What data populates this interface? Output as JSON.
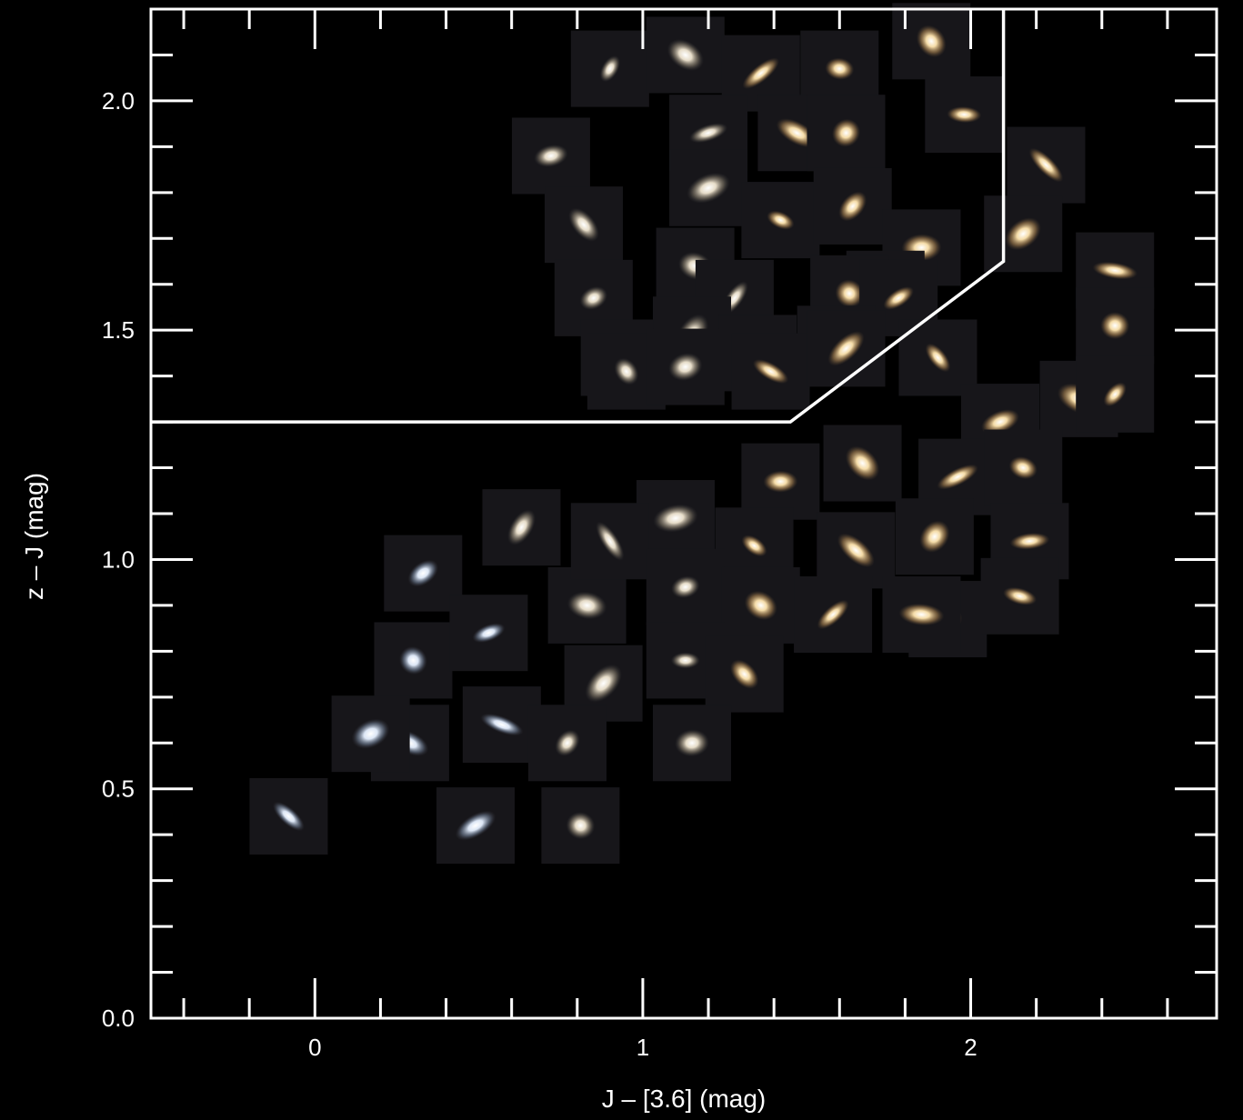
{
  "chart_data": {
    "type": "scatter",
    "title": "",
    "xlabel": "J – [3.6] (mag)",
    "ylabel": "z – J  (mag)",
    "xlim": [
      -0.5,
      2.75
    ],
    "ylim": [
      0.0,
      2.2
    ],
    "xticks": [
      0,
      1,
      2
    ],
    "xtick_labels": [
      "0",
      "1",
      "2"
    ],
    "yticks": [
      0.0,
      0.5,
      1.0,
      1.5,
      2.0
    ],
    "ytick_labels": [
      "0.0",
      "0.5",
      "1.0",
      "1.5",
      "2.0"
    ],
    "x_minor_step": 0.2,
    "y_minor_step": 0.1,
    "grid": false,
    "background": "#000000",
    "axis_color": "#ffffff",
    "selection_boundary": {
      "x": [
        -0.5,
        1.45,
        2.1,
        2.1
      ],
      "y": [
        1.3,
        1.3,
        1.65,
        2.2
      ]
    },
    "series": [
      {
        "x": [
          0.9,
          0.72,
          1.13,
          1.36,
          1.6,
          1.88,
          1.2,
          1.47,
          1.62,
          1.98,
          0.82,
          1.2,
          1.42,
          1.64,
          1.85,
          2.23,
          0.85,
          1.16,
          1.28,
          1.74,
          1.63,
          1.78,
          0.93,
          1.15,
          1.35,
          1.59,
          2.16,
          2.44,
          0.95,
          1.13,
          1.39,
          1.62,
          2.44,
          1.9,
          2.09,
          2.33,
          2.44,
          1.42,
          1.67,
          1.96,
          2.16,
          1.89,
          2.18,
          1.65,
          1.93,
          2.15,
          0.63,
          1.1,
          1.34,
          0.33,
          0.83,
          0.9,
          1.13,
          1.36,
          1.58,
          1.85,
          0.3,
          0.53,
          0.29,
          0.88,
          1.13,
          1.31,
          0.17,
          0.57,
          0.77,
          1.15,
          -0.08,
          0.49,
          0.81
        ],
        "y": [
          2.07,
          1.88,
          2.1,
          2.06,
          2.07,
          2.13,
          1.93,
          1.93,
          1.93,
          1.97,
          1.73,
          1.81,
          1.74,
          1.77,
          1.68,
          1.86,
          1.57,
          1.64,
          1.57,
          1.59,
          1.58,
          1.57,
          1.44,
          1.49,
          1.45,
          1.47,
          1.71,
          1.63,
          1.41,
          1.42,
          1.41,
          1.46,
          1.51,
          1.44,
          1.3,
          1.35,
          1.36,
          1.17,
          1.21,
          1.18,
          1.2,
          1.05,
          1.04,
          1.02,
          0.87,
          0.92,
          1.07,
          1.09,
          1.03,
          0.97,
          0.9,
          1.04,
          0.94,
          0.9,
          0.88,
          0.88,
          0.78,
          0.84,
          0.6,
          0.73,
          0.78,
          0.75,
          0.62,
          0.64,
          0.6,
          0.6,
          0.44,
          0.42,
          0.42
        ]
      }
    ]
  }
}
